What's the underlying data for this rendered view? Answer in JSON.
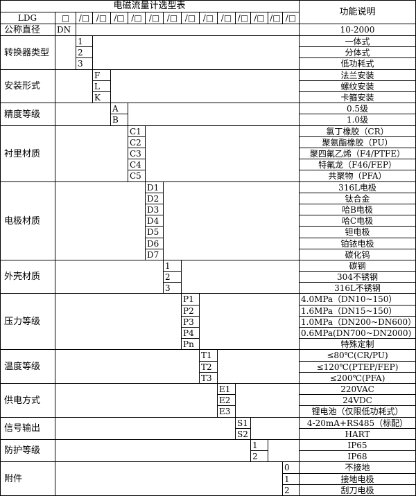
{
  "header": {
    "title": "电磁流量计选型表",
    "function_header": "功能说明",
    "model_prefix": "LDG",
    "code_boxes": [
      "□",
      "/□",
      "/□",
      "/□",
      "/□",
      "/□",
      "/□",
      "/□",
      "/□",
      "/□",
      "/□",
      "/□",
      "/□",
      "/□"
    ],
    "nominal_label": "公称直径",
    "nominal_code": "DN",
    "nominal_range": "10-2000"
  },
  "groups": [
    {
      "label": "转换器类型",
      "codes": [
        "1",
        "2",
        "3"
      ],
      "functions": [
        "一体式",
        "分体式",
        "低功耗式"
      ]
    },
    {
      "label": "安装形式",
      "codes": [
        "F",
        "L",
        "K"
      ],
      "functions": [
        "法兰安装",
        "螺纹安装",
        "卡箍安装"
      ]
    },
    {
      "label": "精度等级",
      "codes": [
        "A",
        "B"
      ],
      "functions": [
        "0.5级",
        "1.0级"
      ]
    },
    {
      "label": "衬里材质",
      "codes": [
        "C1",
        "C2",
        "C3",
        "C4",
        "C5"
      ],
      "functions": [
        "氯丁橡胶（CR）",
        "聚氨酯橡胶（PU）",
        "聚四氟乙烯（F4/PTFE）",
        "特氟龙（F46/FEP）",
        "共聚物（PFA）"
      ]
    },
    {
      "label": "电极材质",
      "codes": [
        "D1",
        "D2",
        "D3",
        "D4",
        "D5",
        "D6",
        "D7"
      ],
      "functions": [
        "316L电极",
        "钛合金",
        "哈B电极",
        "哈C电极",
        "钽电极",
        "铂铱电极",
        "碳化钨"
      ]
    },
    {
      "label": "外壳材质",
      "codes": [
        "1",
        "2",
        "3"
      ],
      "functions": [
        "碳钢",
        "304不锈钢",
        "316L不锈钢"
      ]
    },
    {
      "label": "压力等级",
      "codes": [
        "P1",
        "P2",
        "P3",
        "P4",
        "Pn"
      ],
      "functions": [
        "4.0MPa（DN10~150）",
        "1.6MPa（DN15~150）",
        "1.0MPa（DN200~DN600）",
        "0.6MPa(DN700~DN2000)",
        "特殊定制"
      ]
    },
    {
      "label": "温度等级",
      "codes": [
        "T1",
        "T2",
        "T3"
      ],
      "functions": [
        "≤80℃(CR/PU)",
        "≤120℃(PTEP/FEP)",
        "≤200℃(PFA)"
      ]
    },
    {
      "label": "供电方式",
      "codes": [
        "E1",
        "E2",
        "E3"
      ],
      "functions": [
        "220VAC",
        "24VDC",
        "锂电池（仅限低功耗式）"
      ]
    },
    {
      "label": "信号输出",
      "codes": [
        "S1",
        "S2"
      ],
      "functions": [
        "4-20mA+RS485（标配）",
        "HART"
      ]
    },
    {
      "label": "防护等级",
      "codes": [
        "1",
        "2"
      ],
      "functions": [
        "IP65",
        "IP68"
      ]
    },
    {
      "label": "附件",
      "codes": [
        "0",
        "1",
        "2"
      ],
      "functions": [
        "不接地",
        "接地电极",
        "刮刀电极"
      ]
    }
  ]
}
